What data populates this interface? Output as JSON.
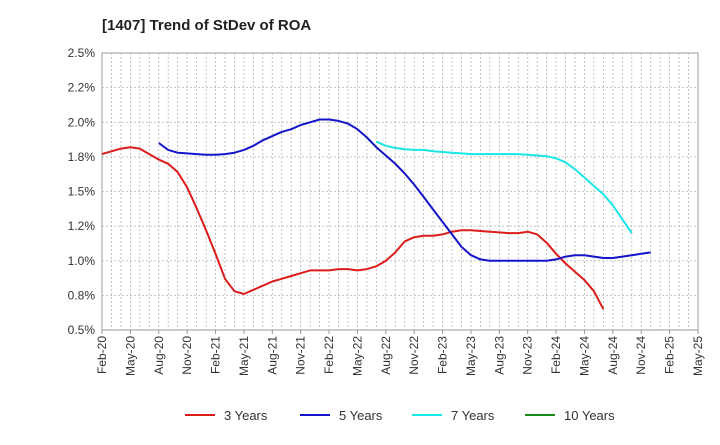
{
  "chart_data": {
    "type": "line",
    "title": "[1407]  Trend of StDev of ROA",
    "xlabel": "",
    "ylabel": "",
    "x_ticks": [
      "Feb-20",
      "May-20",
      "Aug-20",
      "Nov-20",
      "Feb-21",
      "May-21",
      "Aug-21",
      "Nov-21",
      "Feb-22",
      "May-22",
      "Aug-22",
      "Nov-22",
      "Feb-23",
      "May-23",
      "Aug-23",
      "Nov-23",
      "Feb-24",
      "May-24",
      "Aug-24",
      "Nov-24",
      "Feb-25",
      "May-25"
    ],
    "y_ticks": [
      "0.5%",
      "0.8%",
      "1.0%",
      "1.2%",
      "1.5%",
      "1.8%",
      "2.0%",
      "2.2%",
      "2.5%"
    ],
    "ylim": [
      0.5,
      2.5
    ],
    "grid": true,
    "legend_position": "bottom",
    "series": [
      {
        "name": "3 Years",
        "color": "#dd1c1c",
        "values": [
          1.77,
          1.79,
          1.81,
          1.82,
          1.81,
          1.77,
          1.73,
          1.7,
          1.64,
          1.53,
          1.38,
          1.22,
          1.05,
          0.87,
          0.78,
          0.76,
          0.79,
          0.82,
          0.85,
          0.87,
          0.89,
          0.91,
          0.93,
          0.93,
          0.93,
          0.94,
          0.94,
          0.93,
          0.94,
          0.96,
          1.0,
          1.06,
          1.14,
          1.17,
          1.18,
          1.18,
          1.19,
          1.21,
          1.22,
          1.22,
          1.215,
          1.21,
          1.205,
          1.2,
          1.2,
          1.21,
          1.19,
          1.13,
          1.05,
          0.98,
          0.92,
          0.86,
          0.78,
          0.65
        ]
      },
      {
        "name": "5 Years",
        "color": "#1414c8",
        "values": [
          null,
          null,
          null,
          null,
          null,
          null,
          1.85,
          1.8,
          1.78,
          1.775,
          1.77,
          1.765,
          1.765,
          1.77,
          1.78,
          1.8,
          1.83,
          1.87,
          1.9,
          1.93,
          1.95,
          1.98,
          2.0,
          2.02,
          2.02,
          2.01,
          1.99,
          1.95,
          1.89,
          1.82,
          1.76,
          1.7,
          1.63,
          1.55,
          1.46,
          1.37,
          1.28,
          1.19,
          1.1,
          1.04,
          1.01,
          1.0,
          1.0,
          1.0,
          1.0,
          1.0,
          1.0,
          1.0,
          1.01,
          1.03,
          1.04,
          1.04,
          1.03,
          1.02,
          1.02,
          1.03,
          1.04,
          1.05,
          1.06
        ]
      },
      {
        "name": "7 Years",
        "color": "#19e6e6",
        "values": [
          null,
          null,
          null,
          null,
          null,
          null,
          null,
          null,
          null,
          null,
          null,
          null,
          null,
          null,
          null,
          null,
          null,
          null,
          null,
          null,
          null,
          null,
          null,
          null,
          null,
          null,
          null,
          null,
          null,
          1.86,
          1.83,
          1.815,
          1.805,
          1.8,
          1.8,
          1.79,
          1.785,
          1.78,
          1.775,
          1.77,
          1.77,
          1.77,
          1.77,
          1.77,
          1.77,
          1.765,
          1.76,
          1.755,
          1.74,
          1.71,
          1.66,
          1.6,
          1.54,
          1.48,
          1.4,
          1.3,
          1.2
        ]
      },
      {
        "name": "10 Years",
        "color": "#1a8a1a",
        "values": []
      }
    ]
  }
}
